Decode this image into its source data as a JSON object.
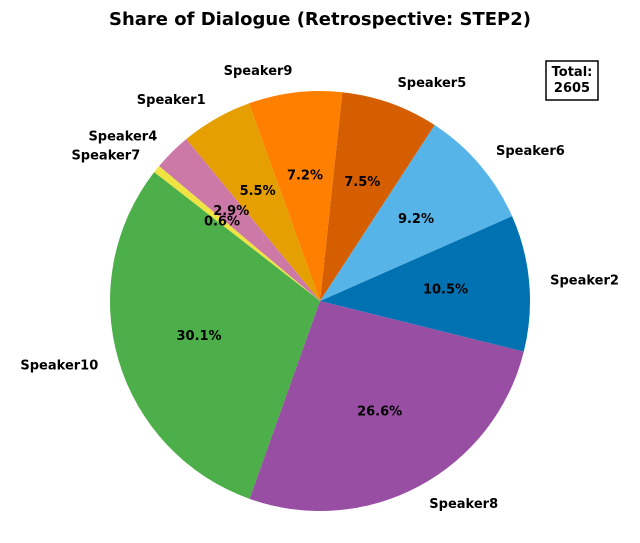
{
  "chart_data": {
    "type": "pie",
    "title": "Share of Dialogue (Retrospective: STEP2)",
    "start_angle_deg": 140,
    "direction": "counterclockwise",
    "slices": [
      {
        "label": "Speaker7",
        "value": 0.6,
        "pct_label": "0.6%",
        "color": "#f0e442"
      },
      {
        "label": "Speaker10",
        "value": 30.1,
        "pct_label": "30.1%",
        "color": "#4daf4a"
      },
      {
        "label": "Speaker8",
        "value": 26.6,
        "pct_label": "26.6%",
        "color": "#984ea3"
      },
      {
        "label": "Speaker2",
        "value": 10.5,
        "pct_label": "10.5%",
        "color": "#0072b2"
      },
      {
        "label": "Speaker6",
        "value": 9.2,
        "pct_label": "9.2%",
        "color": "#56b4e9"
      },
      {
        "label": "Speaker5",
        "value": 7.5,
        "pct_label": "7.5%",
        "color": "#d55e00"
      },
      {
        "label": "Speaker9",
        "value": 7.2,
        "pct_label": "7.2%",
        "color": "#ff7f00"
      },
      {
        "label": "Speaker1",
        "value": 5.5,
        "pct_label": "5.5%",
        "color": "#e69f00"
      },
      {
        "label": "Speaker4",
        "value": 2.9,
        "pct_label": "2.9%",
        "color": "#cc79a7"
      }
    ],
    "total_box": {
      "label": "Total:",
      "value": "2605"
    }
  }
}
